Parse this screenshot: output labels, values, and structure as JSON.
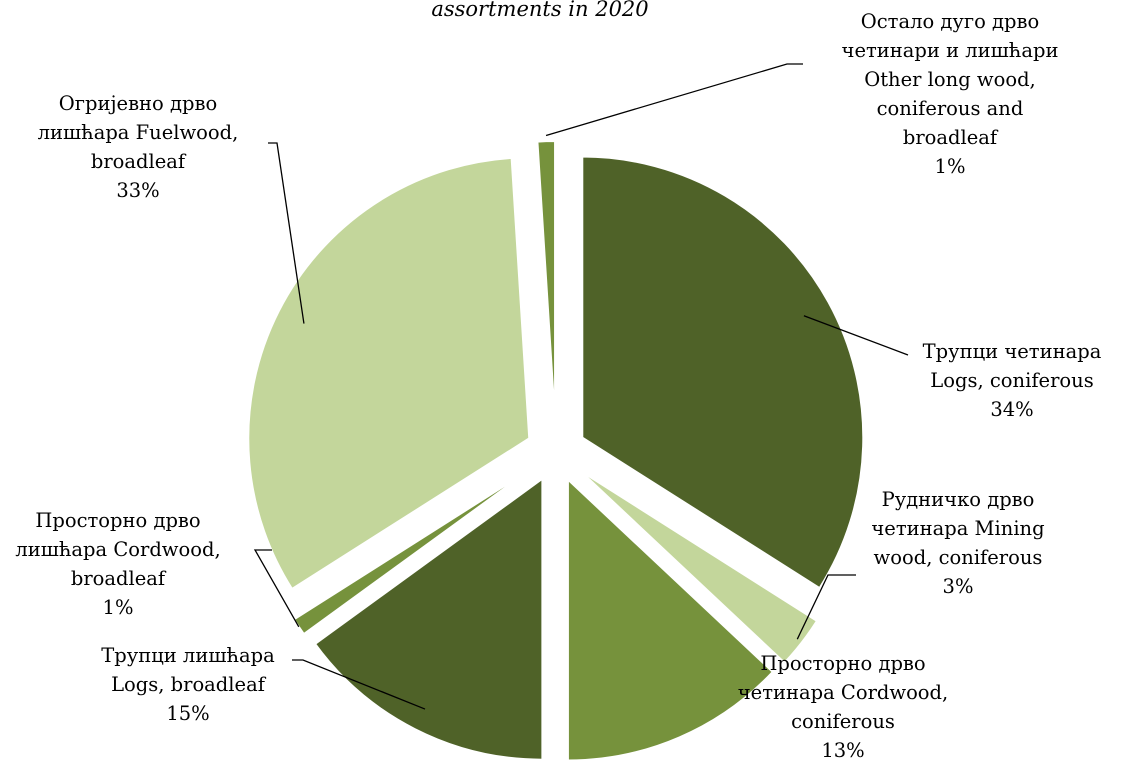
{
  "chart_data": {
    "type": "pie",
    "title": "assortments in 2020",
    "slices": [
      {
        "label_lines": [
          "Трупци четинара",
          "Logs, coniferous",
          "34%"
        ],
        "value": 34,
        "color": "#4f6228"
      },
      {
        "label_lines": [
          "Рудничко дрво",
          "четинара Mining",
          "wood, coniferous",
          "3%"
        ],
        "value": 3,
        "color": "#c3d69b"
      },
      {
        "label_lines": [
          "Просторно дрво",
          "четинара Cordwood,",
          "coniferous",
          "13%"
        ],
        "value": 13,
        "color": "#76923c"
      },
      {
        "label_lines": [
          "Трупци лишћара",
          "Logs, broadleaf",
          "15%"
        ],
        "value": 15,
        "color": "#4f6228"
      },
      {
        "label_lines": [
          "Просторно дрво",
          "лишћара Cordwood,",
          "broadleaf",
          "1%"
        ],
        "value": 1,
        "color": "#76923c"
      },
      {
        "label_lines": [
          "Огријевно дрво",
          "лишћара  Fuelwood,",
          "broadleaf",
          "33%"
        ],
        "value": 33,
        "color": "#c3d69b"
      },
      {
        "label_lines": [
          "Остало дуго дрво",
          "четинари и лишћари",
          "Other long wood,",
          "coniferous and",
          "broadleaf",
          "1%"
        ],
        "value": 1,
        "color": "#76923c"
      }
    ]
  }
}
